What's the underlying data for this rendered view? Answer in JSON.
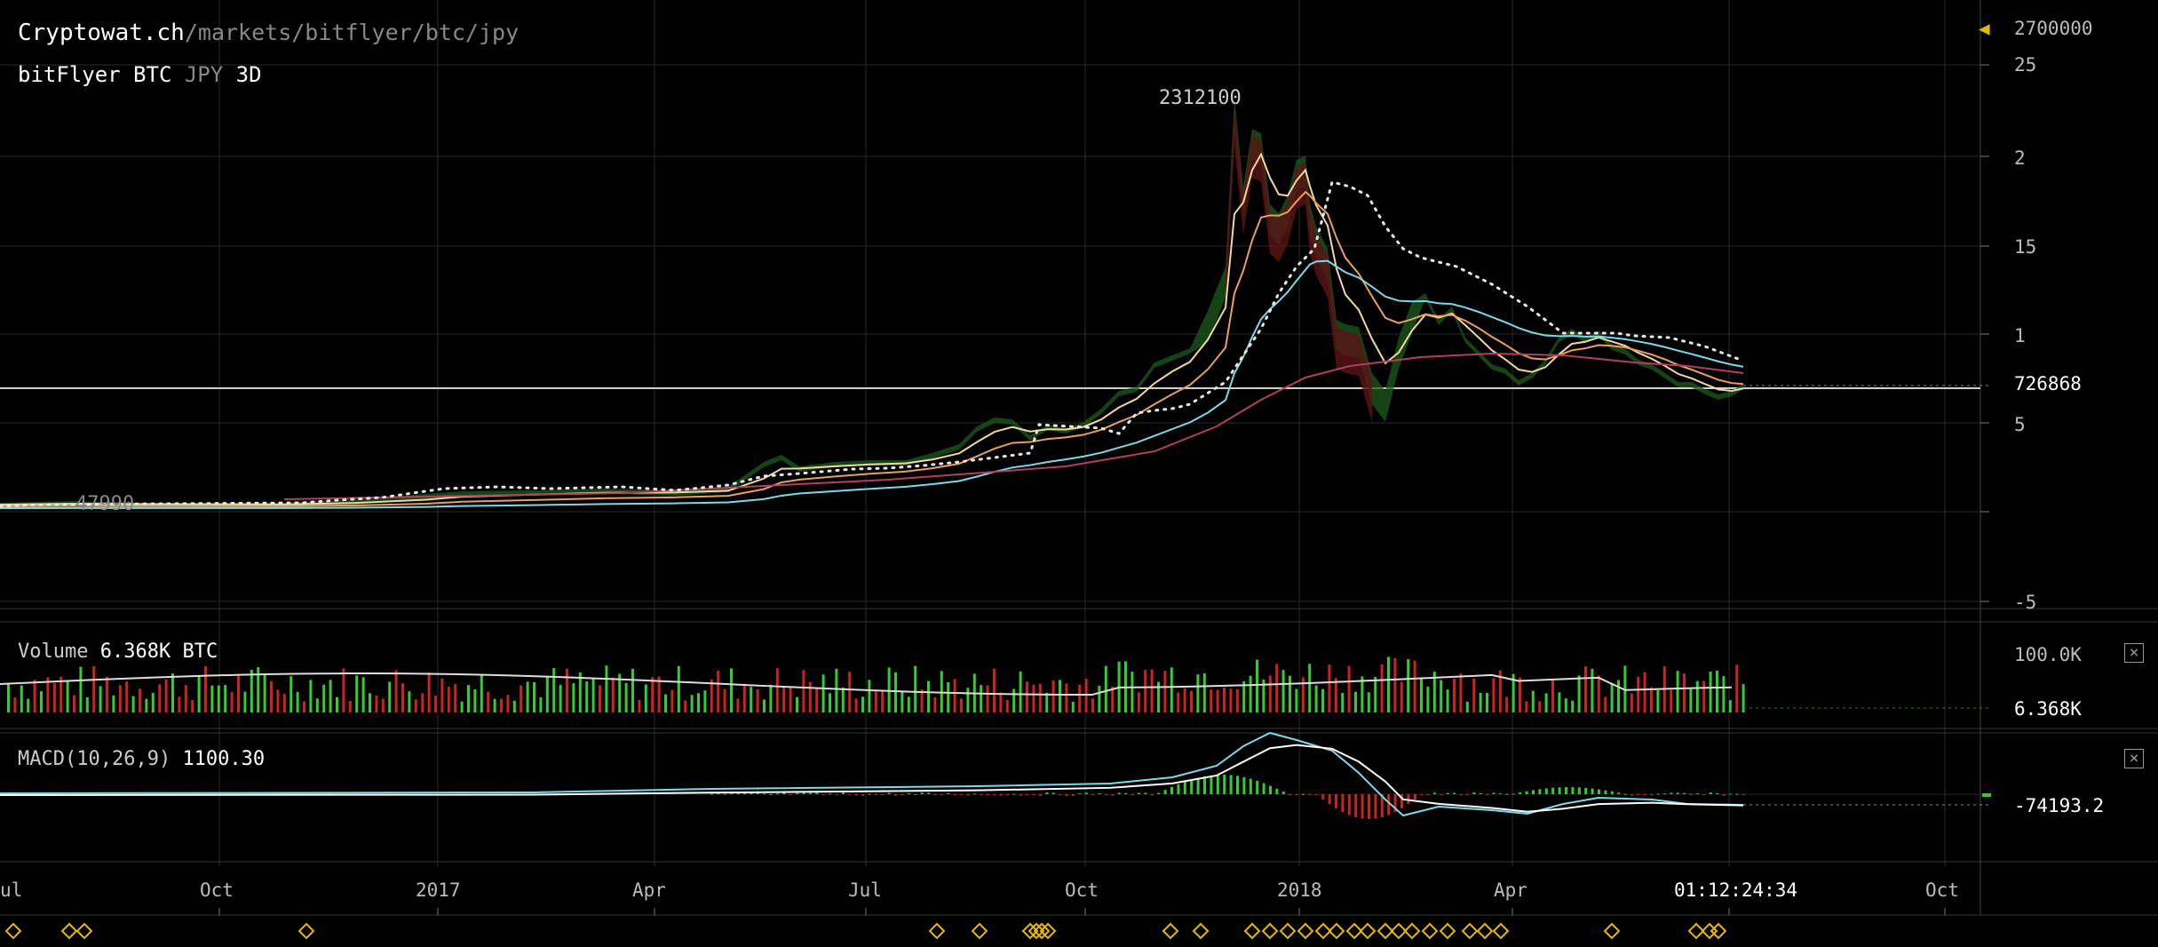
{
  "header": {
    "brand": "Cryptowat.ch",
    "path": "/markets/bitflyer/btc/jpy",
    "exchange": "bitFlyer",
    "base": "BTC",
    "quote": "JPY",
    "period": "3D"
  },
  "price_panel": {
    "high_marker": "2700000",
    "peak_label": "2312100",
    "low_label": "47990",
    "last_price": "726868",
    "y_ticks": [
      "25",
      "2",
      "15",
      "1",
      "5",
      "",
      "-5"
    ]
  },
  "volume_panel": {
    "label": "Volume",
    "value": "6.368K BTC",
    "ticks": [
      "100.0K",
      "6.368K"
    ],
    "close_label": "×"
  },
  "macd_panel": {
    "label": "MACD(10,26,9)",
    "value": "1100.30",
    "last": "-74193.2",
    "close_label": "×"
  },
  "x_axis": {
    "labels": [
      "ul",
      "Oct",
      "2017",
      "Apr",
      "Jul",
      "Oct",
      "2018",
      "Apr",
      "Oct"
    ],
    "countdown": "01:12:24:34"
  },
  "colors": {
    "background": "#000000",
    "grid": "#2a2a2a",
    "up": "#33cc33",
    "down": "#cc2222",
    "ema_orange": "#e8a060",
    "ema_cyan": "#7fd8e8",
    "sma_maroon": "#b04060",
    "marker": "#e6b800"
  },
  "chart_data": {
    "type": "line",
    "title": "bitFlyer BTC JPY 3D",
    "x": [
      "2016-07",
      "2016-10",
      "2017-01",
      "2017-04",
      "2017-07",
      "2017-10",
      "2018-01",
      "2018-04",
      "2018-07"
    ],
    "series": [
      {
        "values": [
          65000,
          75000,
          100000,
          130000,
          280000,
          500000,
          1800000,
          850000,
          726868
        ]
      }
    ],
    "annotations": {
      "high": 2312100,
      "low": 47990,
      "last": 726868
    }
  }
}
